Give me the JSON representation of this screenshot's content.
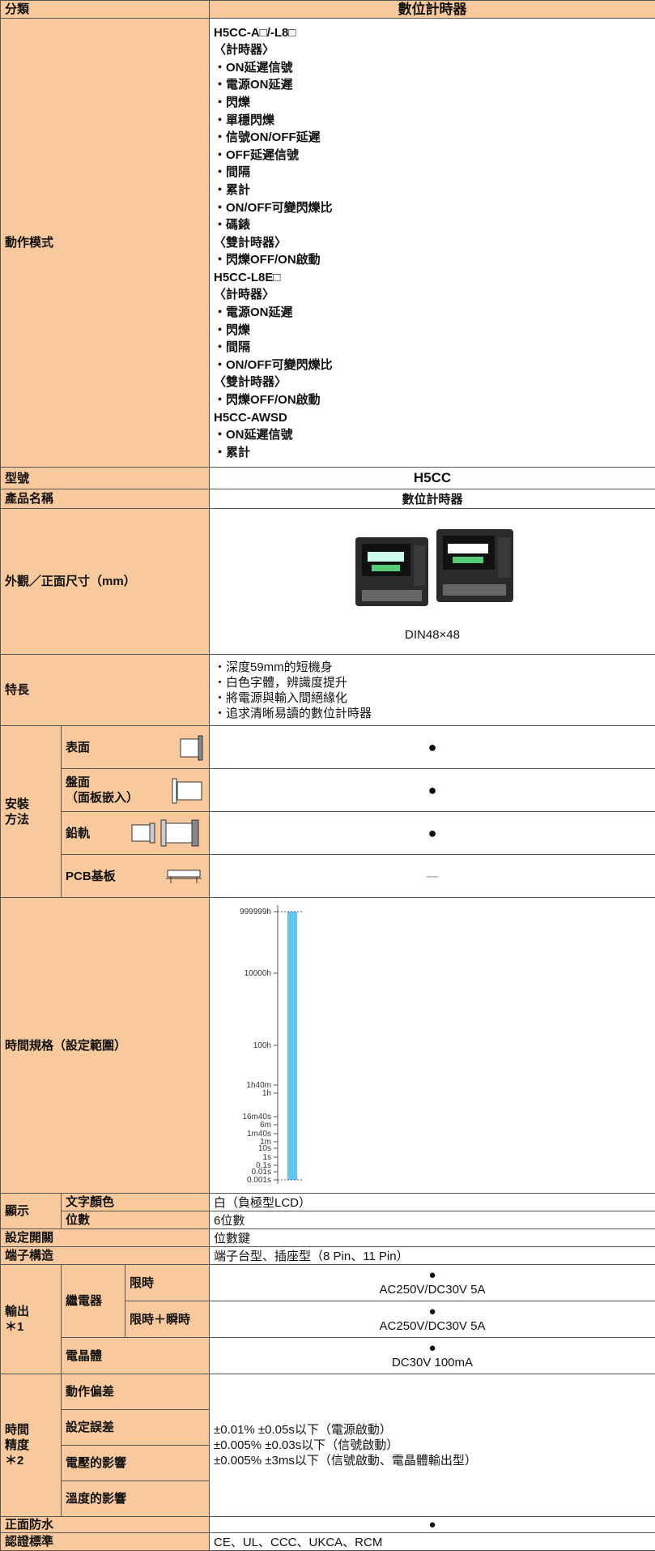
{
  "header": {
    "label": "分類",
    "value": "數位計時器"
  },
  "operation_mode": {
    "label": "動作模式",
    "lines": [
      "H5CC-A□/-L8□",
      "〈計時器〉",
      "・ON延遲信號",
      "・電源ON延遲",
      "・閃爍",
      "・單穩閃爍",
      "・信號ON/OFF延遲",
      "・OFF延遲信號",
      "・間隔",
      "・累計",
      "・ON/OFF可變閃爍比",
      "・碼錶",
      "〈雙計時器〉",
      "・閃爍OFF/ON啟動",
      "H5CC-L8E□",
      "〈計時器〉",
      "・電源ON延遲",
      "・閃爍",
      "・間隔",
      "・ON/OFF可變閃爍比",
      "〈雙計時器〉",
      "・閃爍OFF/ON啟動",
      "H5CC-AWSD",
      "・ON延遲信號",
      "・累計"
    ]
  },
  "model": {
    "label": "型號",
    "value": "H5CC"
  },
  "product_name": {
    "label": "產品名稱",
    "value": "數位計時器"
  },
  "appearance": {
    "label": "外觀／正面尺寸（mm）",
    "caption": "DIN48×48"
  },
  "features": {
    "label": "特長",
    "lines": [
      "・深度59mm的短機身",
      "・白色字體，辨識度提升",
      "・將電源與輸入間絕緣化",
      "・追求清晰易讀的數位計時器"
    ]
  },
  "mounting": {
    "label": "安裝\n方法",
    "rows": [
      {
        "name": "表面",
        "value": "●"
      },
      {
        "name": "盤面\n（面板嵌入）",
        "value": "●"
      },
      {
        "name": "鉛軌",
        "value": "●"
      },
      {
        "name": "PCB基板",
        "value": "—"
      }
    ]
  },
  "time_range": {
    "label": "時間規格（設定範圍）",
    "ticks": [
      "999999h",
      "10000h",
      "100h",
      "1h40m",
      "1h",
      "16m40s",
      "6m",
      "1m40s",
      "1m",
      "10s",
      "1s",
      "0.1s",
      "0.01s",
      "0.001s"
    ]
  },
  "display": {
    "label": "顯示",
    "rows": [
      {
        "name": "文字顏色",
        "value": "白（負極型LCD）"
      },
      {
        "name": "位數",
        "value": "6位數"
      }
    ]
  },
  "setting_switch": {
    "label": "設定開關",
    "value": "位數鍵"
  },
  "terminal": {
    "label": "端子構造",
    "value": "端子台型、插座型（8 Pin、11 Pin）"
  },
  "output": {
    "label": "輸出\n＊1",
    "relay": {
      "name": "繼電器",
      "rows": [
        {
          "name": "限時",
          "mark": "●",
          "value": "AC250V/DC30V 5A"
        },
        {
          "name": "限時＋瞬時",
          "mark": "●",
          "value": "AC250V/DC30V 5A"
        }
      ]
    },
    "transistor": {
      "name": "電晶體",
      "mark": "●",
      "value": "DC30V 100mA"
    }
  },
  "accuracy": {
    "label": "時間\n精度\n＊2",
    "items": [
      "動作偏差",
      "設定誤差",
      "電壓的影響",
      "溫度的影響"
    ],
    "lines": [
      "±0.01% ±0.05s以下（電源啟動）",
      "±0.005% ±0.03s以下（信號啟動）",
      "±0.005% ±3ms以下（信號啟動、電晶體輸出型）"
    ]
  },
  "waterproof": {
    "label": "正面防水",
    "value": "●"
  },
  "certification": {
    "label": "認證標準",
    "value": "CE、UL、CCC、UKCA、RCM"
  }
}
